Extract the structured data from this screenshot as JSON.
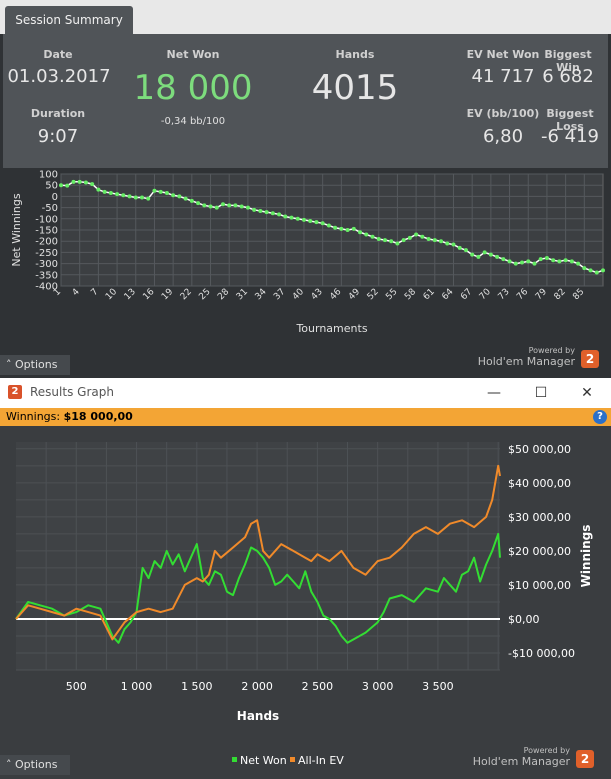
{
  "tab": {
    "label": "Session Summary"
  },
  "summary": {
    "date_label": "Date",
    "date_value": "01.03.2017",
    "duration_label": "Duration",
    "duration_value": "9:07",
    "net_won_label": "Net Won",
    "net_won_value": "18 000",
    "net_won_sub": "-0,34 bb/100",
    "hands_label": "Hands",
    "hands_value": "4015",
    "ev_net_won_label": "EV Net Won",
    "ev_net_won_value": "41 717",
    "biggest_win_label": "Biggest Win",
    "biggest_win_value": "6 682",
    "ev_bb100_label": "EV (bb/100)",
    "ev_bb100_value": "6,80",
    "biggest_loss_label": "Biggest Loss",
    "biggest_loss_value": "-6 419",
    "net_won_color": "#7ddc7d"
  },
  "options1": {
    "label": "Options"
  },
  "powered1": {
    "line1": "Powered by",
    "line2": "Hold'em Manager",
    "badge": "2"
  },
  "window": {
    "title": "Results Graph",
    "icon": "2",
    "minimize": "—",
    "maximize": "☐",
    "close": "✕",
    "winnings_label": "Winnings:",
    "winnings_value": "$18 000,00",
    "help": "?"
  },
  "options2": {
    "label": "Options"
  },
  "powered2": {
    "line1": "Powered by",
    "line2": "Hold'em Manager",
    "badge": "2"
  },
  "chart_data": [
    {
      "type": "line",
      "title": "",
      "xlabel": "Tournaments",
      "ylabel": "Net Winnings",
      "ylim": [
        -400,
        100
      ],
      "yticks": [
        100,
        50,
        0,
        -50,
        -100,
        -150,
        -200,
        -250,
        -300,
        -350,
        -400
      ],
      "xticks": [
        1,
        4,
        7,
        10,
        13,
        16,
        19,
        22,
        25,
        28,
        31,
        34,
        37,
        40,
        43,
        46,
        49,
        52,
        55,
        58,
        61,
        64,
        67,
        70,
        73,
        76,
        79,
        82,
        85
      ],
      "xlim": [
        1,
        88
      ],
      "grid": true,
      "color": "#66ee66",
      "series": [
        {
          "values": [
            50,
            48,
            65,
            65,
            62,
            55,
            30,
            20,
            15,
            10,
            5,
            0,
            -5,
            -5,
            -10,
            25,
            20,
            15,
            5,
            0,
            -10,
            -20,
            -30,
            -40,
            -45,
            -50,
            -35,
            -40,
            -40,
            -45,
            -50,
            -60,
            -65,
            -70,
            -75,
            -80,
            -90,
            -95,
            -100,
            -105,
            -110,
            -115,
            -120,
            -130,
            -140,
            -145,
            -150,
            -145,
            -160,
            -170,
            -180,
            -190,
            -195,
            -200,
            -210,
            -195,
            -185,
            -170,
            -180,
            -190,
            -195,
            -200,
            -210,
            -215,
            -230,
            -240,
            -260,
            -270,
            -250,
            -260,
            -270,
            -280,
            -290,
            -300,
            -295,
            -290,
            -300,
            -280,
            -275,
            -285,
            -290,
            -285,
            -290,
            -300,
            -320,
            -330,
            -340,
            -330
          ]
        }
      ]
    },
    {
      "type": "line",
      "title": "",
      "xlabel": "Hands",
      "ylabel": "Winnings",
      "ylim": [
        -15000,
        52000
      ],
      "xlim": [
        0,
        4015
      ],
      "xticks": [
        500,
        1000,
        1500,
        2000,
        2500,
        3000,
        3500
      ],
      "xtick_labels": [
        "500",
        "1 000",
        "1 500",
        "2 000",
        "2 500",
        "3 000",
        "3 500"
      ],
      "yticks": [
        50000,
        40000,
        30000,
        20000,
        10000,
        0,
        -10000
      ],
      "ytick_labels": [
        "$50 000,00",
        "$40 000,00",
        "$30 000,00",
        "$20 000,00",
        "$10 000,00",
        "$0,00",
        "-$10 000,00"
      ],
      "legend": "bottom",
      "grid": true,
      "series": [
        {
          "name": "Net Won",
          "color": "#33dd33",
          "x": [
            0,
            100,
            200,
            300,
            400,
            500,
            600,
            700,
            800,
            850,
            900,
            950,
            1000,
            1050,
            1100,
            1150,
            1200,
            1250,
            1300,
            1350,
            1400,
            1450,
            1500,
            1550,
            1600,
            1650,
            1700,
            1750,
            1800,
            1850,
            1900,
            1950,
            2000,
            2050,
            2100,
            2150,
            2200,
            2250,
            2300,
            2350,
            2400,
            2450,
            2500,
            2550,
            2600,
            2650,
            2700,
            2750,
            2800,
            2900,
            3000,
            3050,
            3100,
            3200,
            3300,
            3400,
            3500,
            3550,
            3600,
            3650,
            3700,
            3750,
            3800,
            3850,
            3900,
            3950,
            4000,
            4015
          ],
          "values": [
            0,
            5000,
            4000,
            3000,
            1000,
            2000,
            4000,
            3000,
            -5000,
            -7000,
            -3000,
            -1000,
            2000,
            15000,
            12000,
            17000,
            15000,
            20000,
            16000,
            19000,
            14000,
            18000,
            22000,
            12000,
            10000,
            14000,
            13000,
            8000,
            7000,
            12000,
            16000,
            21000,
            20000,
            18000,
            15000,
            10000,
            11000,
            13000,
            11000,
            9000,
            14000,
            8000,
            5000,
            1000,
            0,
            -2000,
            -5000,
            -7000,
            -6000,
            -4000,
            -1000,
            2000,
            6000,
            7000,
            5000,
            9000,
            8000,
            12000,
            10000,
            8000,
            13000,
            14000,
            18000,
            11000,
            16000,
            20000,
            25000,
            18000
          ]
        },
        {
          "name": "All-In EV",
          "color": "#f08a2a",
          "x": [
            0,
            100,
            200,
            300,
            400,
            500,
            600,
            700,
            800,
            900,
            1000,
            1100,
            1200,
            1300,
            1400,
            1450,
            1500,
            1550,
            1600,
            1650,
            1700,
            1800,
            1900,
            1950,
            2000,
            2050,
            2100,
            2200,
            2300,
            2400,
            2450,
            2500,
            2600,
            2700,
            2800,
            2900,
            3000,
            3100,
            3200,
            3300,
            3400,
            3500,
            3600,
            3700,
            3800,
            3900,
            3950,
            4000,
            4015
          ],
          "values": [
            0,
            4000,
            3000,
            2000,
            1000,
            3000,
            2000,
            1000,
            -6000,
            -1000,
            2000,
            3000,
            2000,
            3000,
            10000,
            11000,
            12000,
            11000,
            13000,
            20000,
            18000,
            21000,
            24000,
            28000,
            29000,
            20000,
            18000,
            22000,
            20000,
            18000,
            17000,
            19000,
            17000,
            20000,
            15000,
            13000,
            17000,
            18000,
            21000,
            25000,
            27000,
            25000,
            28000,
            29000,
            27000,
            30000,
            35000,
            45000,
            42000
          ]
        }
      ]
    }
  ]
}
